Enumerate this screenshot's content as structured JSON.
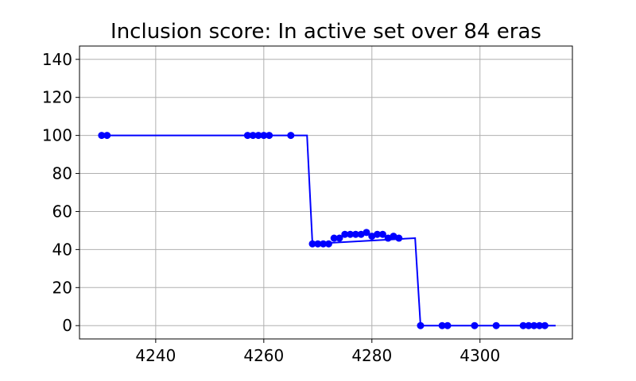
{
  "chart_data": {
    "type": "line",
    "title": "Inclusion score: In active set over 84 eras",
    "xlabel": "",
    "ylabel": "",
    "xlim": [
      4225.9,
      4317.1
    ],
    "ylim": [
      -7,
      147
    ],
    "x_ticks": [
      4240,
      4260,
      4280,
      4300
    ],
    "y_ticks": [
      0,
      20,
      40,
      60,
      80,
      100,
      120,
      140
    ],
    "grid": true,
    "legend": "none",
    "colors": {
      "line": "#0000ff",
      "marker": "#0000ff",
      "grid": "#b0b0b0",
      "axes": "#000000"
    },
    "series": [
      {
        "style": "line",
        "x": [
          4230,
          4268,
          4269,
          4288,
          4289,
          4314
        ],
        "y": [
          100,
          100,
          43,
          46,
          0,
          0
        ]
      },
      {
        "style": "markers",
        "x": [
          4230,
          4231,
          4257,
          4258,
          4259,
          4260,
          4261,
          4265,
          4269,
          4270,
          4271,
          4272,
          4273,
          4274,
          4275,
          4276,
          4277,
          4278,
          4279,
          4280,
          4281,
          4282,
          4283,
          4284,
          4285,
          4289,
          4293,
          4294,
          4299,
          4303,
          4308,
          4309,
          4310,
          4311,
          4312
        ],
        "y": [
          100,
          100,
          100,
          100,
          100,
          100,
          100,
          100,
          43,
          43,
          43,
          43,
          46,
          46,
          48,
          48,
          48,
          48,
          49,
          47,
          48,
          48,
          46,
          47,
          46,
          0,
          0,
          0,
          0,
          0,
          0,
          0,
          0,
          0,
          0
        ]
      }
    ]
  }
}
